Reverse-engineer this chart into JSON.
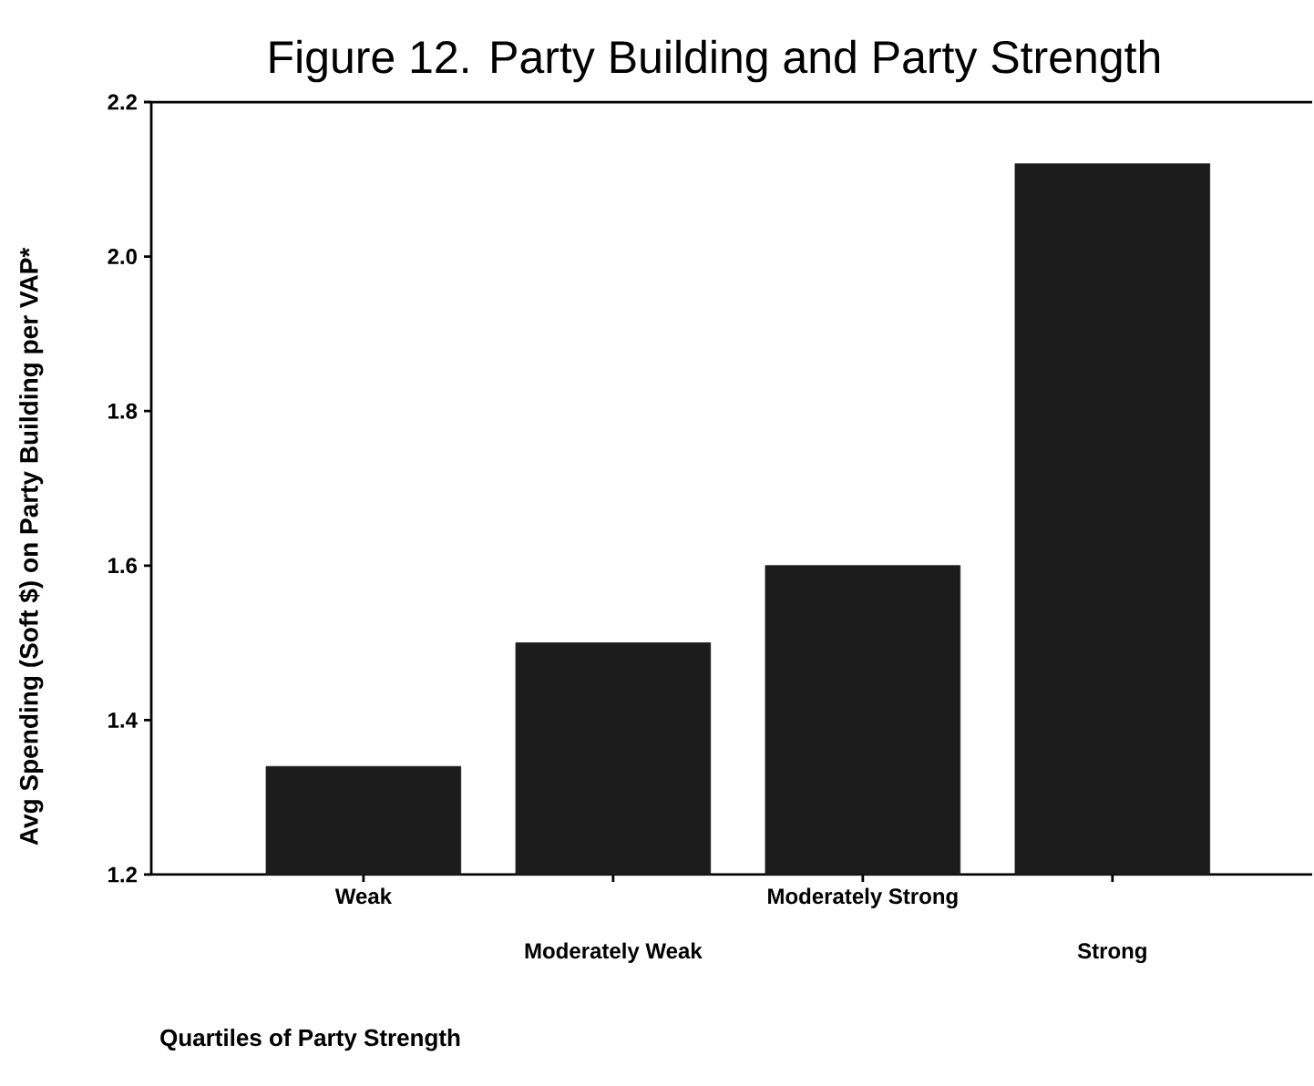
{
  "chart_data": {
    "type": "bar",
    "title": "Figure 12. Party Building and Party Strength",
    "xlabel": "Quartiles of Party Strength",
    "ylabel": "Avg Spending (Soft $) on Party Building per VAP*",
    "categories": [
      "Weak",
      "Moderately Weak",
      "Moderately Strong",
      "Strong"
    ],
    "values": [
      1.34,
      1.5,
      1.6,
      2.12
    ],
    "color": "#1c1c1c",
    "ylim": [
      1.2,
      2.2
    ],
    "yticks": [
      {
        "value": 1.2,
        "label": "1.2"
      },
      {
        "value": 1.4,
        "label": "1.4"
      },
      {
        "value": 1.6,
        "label": "1.6"
      },
      {
        "value": 1.8,
        "label": "1.8"
      },
      {
        "value": 2.0,
        "label": "2.0"
      },
      {
        "value": 2.2,
        "label": "2.2"
      }
    ],
    "grid": false
  }
}
